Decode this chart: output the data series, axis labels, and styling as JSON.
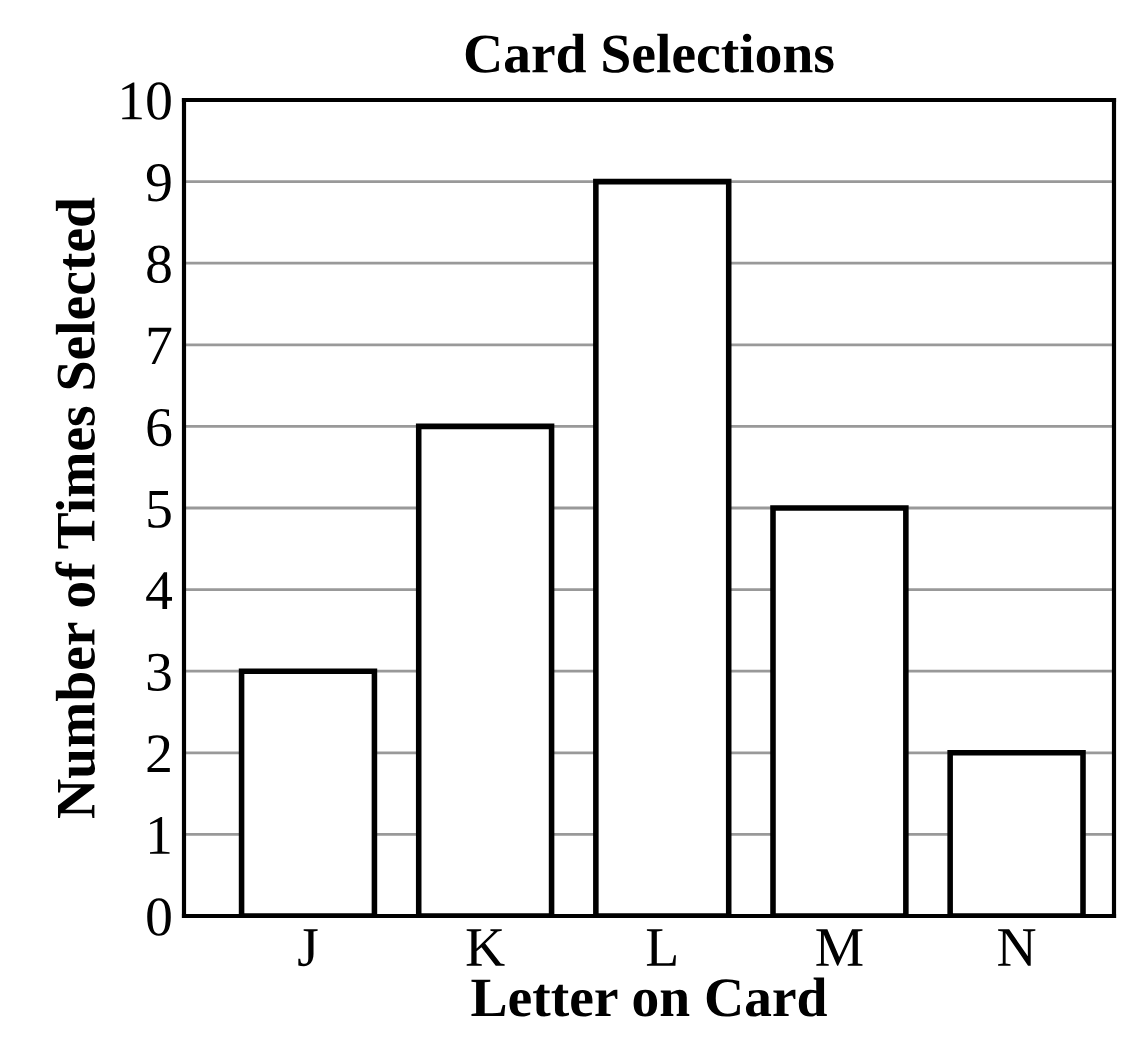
{
  "chart_data": {
    "type": "bar",
    "title": "Card Selections",
    "xlabel": "Letter on Card",
    "ylabel": "Number of Times Selected",
    "categories": [
      "J",
      "K",
      "L",
      "M",
      "N"
    ],
    "values": [
      3,
      6,
      9,
      5,
      2
    ],
    "color": "#ffffff",
    "ylim": [
      0,
      10
    ],
    "yticks": [
      0,
      1,
      2,
      3,
      4,
      5,
      6,
      7,
      8,
      9,
      10
    ],
    "grid": "y",
    "legend": false
  }
}
